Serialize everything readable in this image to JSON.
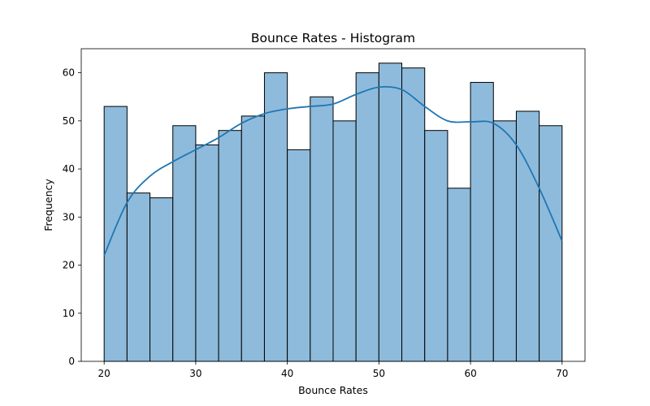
{
  "chart_data": {
    "type": "bar",
    "title": "Bounce Rates - Histogram",
    "xlabel": "Bounce Rates",
    "ylabel": "Frequency",
    "bin_edges": [
      20,
      22.5,
      25,
      27.5,
      30,
      32.5,
      35,
      37.5,
      40,
      42.5,
      45,
      47.5,
      50,
      52.5,
      55,
      57.5,
      60,
      62.5,
      65,
      67.5,
      70
    ],
    "values": [
      53,
      35,
      34,
      49,
      45,
      48,
      51,
      60,
      44,
      55,
      50,
      60,
      62,
      61,
      48,
      36,
      58,
      50,
      52,
      49
    ],
    "kde": {
      "x": [
        20,
        22.5,
        25,
        27.5,
        30,
        32.5,
        35,
        37.5,
        40,
        42.5,
        45,
        47.5,
        50,
        52.5,
        55,
        57.5,
        60,
        62.5,
        65,
        67.5,
        70
      ],
      "y": [
        22,
        33,
        38.5,
        41.5,
        44,
        46.5,
        49.5,
        51.5,
        52.5,
        53,
        53.5,
        55.5,
        57,
        56.5,
        53,
        50,
        49.8,
        49.5,
        45,
        36,
        25
      ]
    },
    "xlim": [
      17.5,
      72.5
    ],
    "ylim": [
      0,
      65
    ],
    "xticks": [
      20,
      30,
      40,
      50,
      60,
      70
    ],
    "yticks": [
      0,
      10,
      20,
      30,
      40,
      50,
      60
    ],
    "bar_color": "#8ebbdc",
    "bar_edge_color": "#000000",
    "kde_color": "#1f77b4",
    "grid": false
  }
}
